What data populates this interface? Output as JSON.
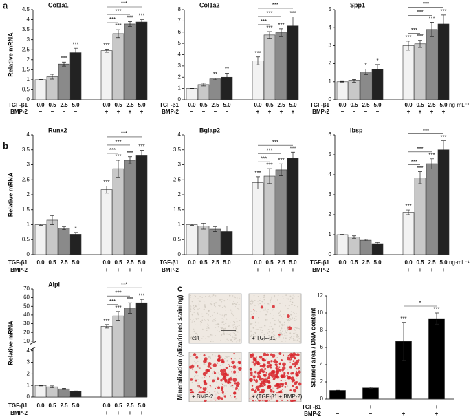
{
  "panel_labels": [
    "a",
    "b",
    "c"
  ],
  "image_panel": {
    "ylabel": "Mineralization (alizarin red staining)",
    "captions": [
      "ctrl",
      "+ TGF-β1",
      "+ BMP-2",
      "+ (TGF-β1 + BMP-2)"
    ]
  },
  "chart_data": [
    {
      "type": "bar",
      "title": "Col1a1",
      "ylabel": "Relative mRNA",
      "row_labels": [
        "TGF-β1",
        "BMP-2"
      ],
      "categories": [
        "0.0",
        "0.5",
        "2.5",
        "5.0",
        "0.0",
        "0.5",
        "2.5",
        "5.0"
      ],
      "bmp2": [
        "–",
        "–",
        "–",
        "–",
        "+",
        "+",
        "+",
        "+"
      ],
      "values": [
        1.0,
        1.15,
        1.78,
        2.35,
        2.45,
        3.3,
        3.78,
        3.88
      ],
      "errors": [
        0.02,
        0.12,
        0.1,
        0.22,
        0.08,
        0.2,
        0.12,
        0.12
      ],
      "sig": [
        null,
        null,
        "***",
        "***",
        "***",
        "***",
        "***",
        "***"
      ],
      "brackets": [
        "***",
        "***",
        "***"
      ],
      "colors": [
        "#f2f2f2",
        "#c8c8c8",
        "#8a8a8a",
        "#222222",
        "#f2f2f2",
        "#c8c8c8",
        "#8a8a8a",
        "#222222"
      ],
      "ylim": [
        0,
        4.5
      ],
      "yticks": [
        0,
        0.5,
        1,
        1.5,
        2,
        2.5,
        3,
        3.5,
        4,
        4.5
      ]
    },
    {
      "type": "bar",
      "title": "Col1a2",
      "row_labels": [
        "TGF-β1",
        "BMP-2"
      ],
      "categories": [
        "0.0",
        "0.5",
        "2.5",
        "5.0",
        "0.0",
        "0.5",
        "2.5",
        "5.0"
      ],
      "bmp2": [
        "–",
        "–",
        "–",
        "–",
        "+",
        "+",
        "+",
        "+"
      ],
      "values": [
        1.0,
        1.35,
        1.85,
        2.0,
        3.45,
        5.75,
        5.95,
        6.55
      ],
      "errors": [
        0.02,
        0.12,
        0.08,
        0.35,
        0.35,
        0.3,
        0.35,
        0.8
      ],
      "sig": [
        null,
        null,
        "**",
        "**",
        "***",
        "***",
        "***",
        "***"
      ],
      "brackets": [
        "***",
        "***",
        "***"
      ],
      "colors": [
        "#f2f2f2",
        "#c8c8c8",
        "#8a8a8a",
        "#222222",
        "#f2f2f2",
        "#c8c8c8",
        "#8a8a8a",
        "#222222"
      ],
      "ylim": [
        0,
        8
      ],
      "yticks": [
        0,
        1,
        2,
        3,
        4,
        5,
        6,
        7,
        8
      ]
    },
    {
      "type": "bar",
      "title": "Spp1",
      "row_labels": [
        "TGF-β1",
        "BMP-2"
      ],
      "unit": "ng·mL⁻¹",
      "categories": [
        "0.0",
        "0.5",
        "2.5",
        "5.0",
        "0.0",
        "0.5",
        "2.5",
        "5.0"
      ],
      "bmp2": [
        "–",
        "–",
        "–",
        "–",
        "+",
        "+",
        "+",
        "+"
      ],
      "values": [
        1.0,
        1.05,
        1.55,
        1.7,
        3.0,
        3.1,
        3.9,
        4.2
      ],
      "errors": [
        0.02,
        0.08,
        0.15,
        0.25,
        0.25,
        0.2,
        0.4,
        0.5
      ],
      "sig": [
        null,
        null,
        "*",
        "*",
        "***",
        "***",
        "***",
        "***"
      ],
      "brackets": [
        "***",
        "***",
        "***"
      ],
      "colors": [
        "#f2f2f2",
        "#c8c8c8",
        "#8a8a8a",
        "#222222",
        "#f2f2f2",
        "#c8c8c8",
        "#8a8a8a",
        "#222222"
      ],
      "ylim": [
        0,
        5
      ],
      "yticks": [
        0,
        1,
        2,
        3,
        4,
        5
      ]
    },
    {
      "type": "bar",
      "title": "Runx2",
      "ylabel": "Relative mRNA",
      "row_labels": [
        "TGF-β1",
        "BMP-2"
      ],
      "categories": [
        "0.0",
        "0.5",
        "2.5",
        "5.0",
        "0.0",
        "0.5",
        "2.5",
        "5.0"
      ],
      "bmp2": [
        "–",
        "–",
        "–",
        "–",
        "+",
        "+",
        "+",
        "+"
      ],
      "values": [
        1.0,
        1.15,
        0.88,
        0.68,
        2.17,
        2.87,
        3.15,
        3.3
      ],
      "errors": [
        0.02,
        0.15,
        0.05,
        0.06,
        0.12,
        0.28,
        0.12,
        0.18
      ],
      "sig": [
        null,
        null,
        null,
        "*",
        "***",
        "***",
        "***",
        "***"
      ],
      "brackets": [
        "***",
        "***",
        "***"
      ],
      "colors": [
        "#f2f2f2",
        "#c8c8c8",
        "#8a8a8a",
        "#222222",
        "#f2f2f2",
        "#c8c8c8",
        "#8a8a8a",
        "#222222"
      ],
      "ylim": [
        0,
        4
      ],
      "yticks": [
        0,
        0.5,
        1,
        1.5,
        2,
        2.5,
        3,
        3.5,
        4
      ]
    },
    {
      "type": "bar",
      "title": "Bglap2",
      "row_labels": [
        "TGF-β1",
        "BMP-2"
      ],
      "categories": [
        "0.0",
        "0.5",
        "2.5",
        "5.0",
        "0.0",
        "0.5",
        "2.5",
        "5.0"
      ],
      "bmp2": [
        "–",
        "–",
        "–",
        "–",
        "+",
        "+",
        "+",
        "+"
      ],
      "values": [
        1.0,
        0.95,
        0.85,
        0.77,
        2.4,
        2.62,
        2.83,
        3.22
      ],
      "errors": [
        0.02,
        0.1,
        0.08,
        0.18,
        0.2,
        0.25,
        0.2,
        0.2
      ],
      "sig": [
        null,
        null,
        null,
        null,
        "***",
        "***",
        "***",
        "***"
      ],
      "brackets": [
        "***",
        "***",
        "***"
      ],
      "colors": [
        "#f2f2f2",
        "#c8c8c8",
        "#8a8a8a",
        "#222222",
        "#f2f2f2",
        "#c8c8c8",
        "#8a8a8a",
        "#222222"
      ],
      "ylim": [
        0,
        4
      ],
      "yticks": [
        0,
        0.5,
        1,
        1.5,
        2,
        2.5,
        3,
        3.5,
        4
      ]
    },
    {
      "type": "bar",
      "title": "Ibsp",
      "row_labels": [
        "TGF-β1",
        "BMP-2"
      ],
      "unit": "ng·mL⁻¹",
      "categories": [
        "0.0",
        "0.5",
        "2.5",
        "5.0",
        "0.0",
        "0.5",
        "2.5",
        "5.0"
      ],
      "bmp2": [
        "–",
        "–",
        "–",
        "–",
        "+",
        "+",
        "+",
        "+"
      ],
      "values": [
        1.0,
        0.88,
        0.72,
        0.55,
        2.12,
        3.85,
        4.55,
        5.25
      ],
      "errors": [
        0.02,
        0.06,
        0.04,
        0.06,
        0.12,
        0.3,
        0.25,
        0.45
      ],
      "sig": [
        null,
        null,
        null,
        null,
        "***",
        "***",
        "***",
        "***"
      ],
      "brackets": [
        "***",
        "***",
        "***"
      ],
      "colors": [
        "#f2f2f2",
        "#c8c8c8",
        "#8a8a8a",
        "#222222",
        "#f2f2f2",
        "#c8c8c8",
        "#8a8a8a",
        "#222222"
      ],
      "ylim": [
        0,
        6
      ],
      "yticks": [
        0,
        1,
        2,
        3,
        4,
        5,
        6
      ]
    },
    {
      "type": "bar",
      "title": "Alpl",
      "ylabel": "Relative mRNA",
      "row_labels": [
        "TGF-β1",
        "BMP-2"
      ],
      "categories": [
        "0.0",
        "0.5",
        "2.5",
        "5.0",
        "0.0",
        "0.5",
        "2.5",
        "5.0"
      ],
      "bmp2": [
        "–",
        "–",
        "–",
        "–",
        "+",
        "+",
        "+",
        "+"
      ],
      "values": [
        1.0,
        0.88,
        0.7,
        0.48,
        27,
        39,
        48,
        54
      ],
      "errors": [
        0.04,
        0.08,
        0.05,
        0.04,
        2,
        5,
        6,
        4
      ],
      "sig": [
        null,
        null,
        null,
        null,
        "***",
        "***",
        "***",
        "***"
      ],
      "brackets": [
        "***",
        "***",
        "***"
      ],
      "colors": [
        "#f2f2f2",
        "#c8c8c8",
        "#8a8a8a",
        "#222222",
        "#f2f2f2",
        "#c8c8c8",
        "#8a8a8a",
        "#222222"
      ],
      "ylim": [
        0,
        70
      ],
      "ybreak": [
        4.2,
        8
      ],
      "yticks": [
        0,
        1,
        2,
        3,
        4,
        10,
        20,
        30,
        40,
        50,
        60,
        70
      ]
    },
    {
      "type": "bar",
      "ylabel": "Stained area / DNA content",
      "row_labels": [
        "TGF-β1",
        "BMP-2"
      ],
      "categories": [
        "–",
        "+",
        "–",
        "+"
      ],
      "bmp2": [
        "–",
        "–",
        "+",
        "+"
      ],
      "values": [
        1.0,
        1.3,
        6.7,
        9.35
      ],
      "errors": [
        0.02,
        0.08,
        2.2,
        0.65
      ],
      "sig": [
        null,
        null,
        "***",
        "***"
      ],
      "brackets": [
        "*"
      ],
      "colors": [
        "#000000",
        "#000000",
        "#000000",
        "#000000"
      ],
      "ylim": [
        0,
        12
      ],
      "yticks": [
        0,
        2,
        4,
        6,
        8,
        10,
        12
      ]
    }
  ]
}
